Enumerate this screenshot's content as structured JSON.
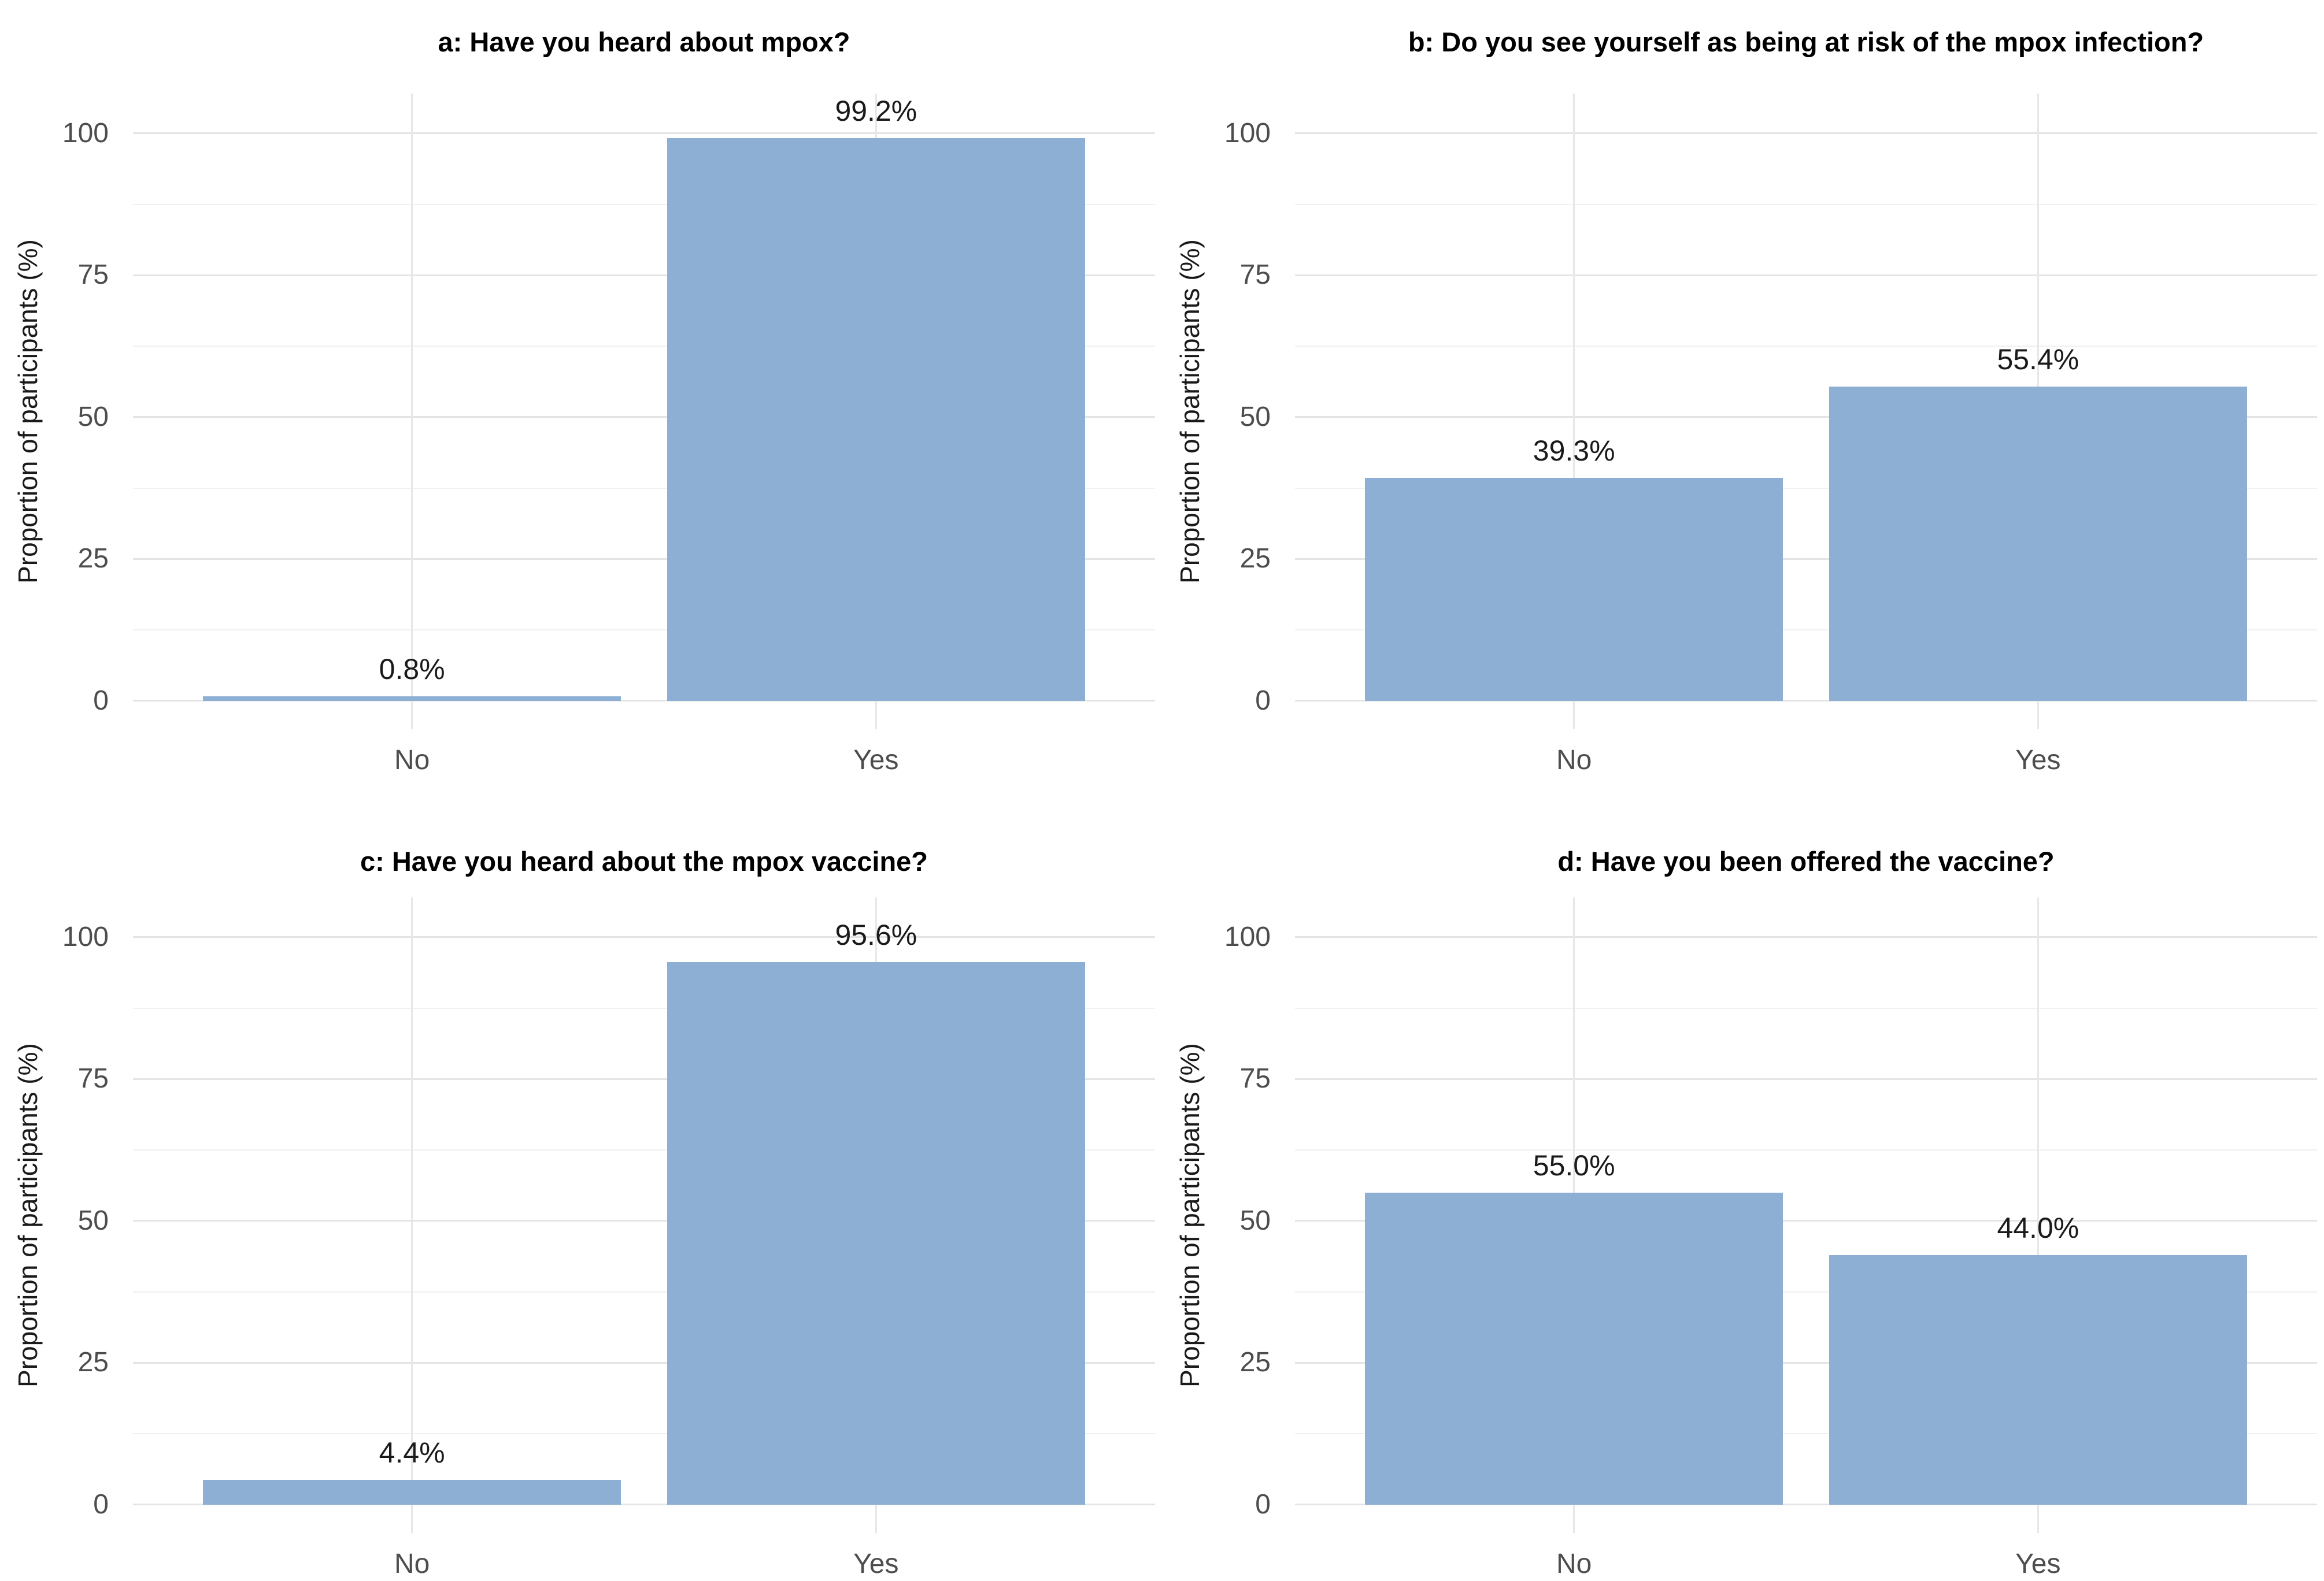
{
  "figure": {
    "ylabel": "Proportion of participants (%)",
    "x_categories": [
      "No",
      "Yes"
    ],
    "colors": {
      "bar_fill": "#8dafd3",
      "grid_major": "#e4e4e4",
      "grid_minor": "#f0f0f0",
      "tick_text": "#4d4d4d",
      "value_label_text": "#1a1a1a",
      "title_text": "#000000",
      "background": "#ffffff"
    }
  },
  "chart_data": [
    {
      "type": "bar",
      "panel": "a",
      "title": "a: Have you heard about mpox?",
      "categories": [
        "No",
        "Yes"
      ],
      "values": [
        0.8,
        99.2
      ],
      "value_labels": [
        "0.8%",
        "99.2%"
      ],
      "ylabel": "Proportion of participants (%)",
      "yticks": [
        0,
        25,
        50,
        75,
        100
      ],
      "ylim": [
        0,
        100
      ],
      "grid": "on",
      "legend": "none"
    },
    {
      "type": "bar",
      "panel": "b",
      "title": "b: Do you see yourself as being at risk of the mpox infection?",
      "categories": [
        "No",
        "Yes"
      ],
      "values": [
        39.3,
        55.4
      ],
      "value_labels": [
        "39.3%",
        "55.4%"
      ],
      "ylabel": "Proportion of participants (%)",
      "yticks": [
        0,
        25,
        50,
        75,
        100
      ],
      "ylim": [
        0,
        100
      ],
      "grid": "on",
      "legend": "none"
    },
    {
      "type": "bar",
      "panel": "c",
      "title": "c: Have you heard about the mpox vaccine?",
      "categories": [
        "No",
        "Yes"
      ],
      "values": [
        4.4,
        95.6
      ],
      "value_labels": [
        "4.4%",
        "95.6%"
      ],
      "ylabel": "Proportion of participants (%)",
      "yticks": [
        0,
        25,
        50,
        75,
        100
      ],
      "ylim": [
        0,
        100
      ],
      "grid": "on",
      "legend": "none"
    },
    {
      "type": "bar",
      "panel": "d",
      "title": "d: Have you been offered the vaccine?",
      "categories": [
        "No",
        "Yes"
      ],
      "values": [
        55.0,
        44.0
      ],
      "value_labels": [
        "55.0%",
        "44.0%"
      ],
      "ylabel": "Proportion of participants (%)",
      "yticks": [
        0,
        25,
        50,
        75,
        100
      ],
      "ylim": [
        0,
        100
      ],
      "grid": "on",
      "legend": "none"
    }
  ]
}
